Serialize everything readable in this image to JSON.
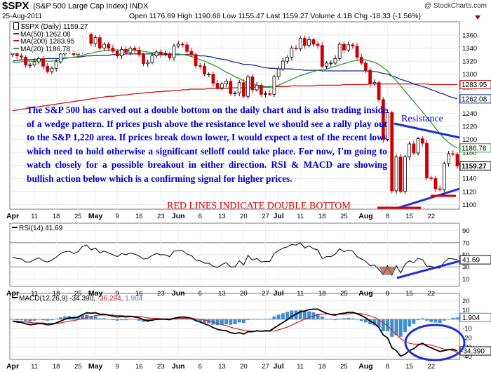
{
  "header": {
    "symbol": "$SPX",
    "name": "(S&P 500 Large Cap Index)",
    "exchange": "INDX",
    "date": "25-Aug-2011",
    "watermark": "@ StockCharts.com",
    "quote_text": "Open 1176.69  High 1190.68  Low 1155.47  Last 1159.27  Volume 4.1B  Chg -18.33 (-1.56%)"
  },
  "colors": {
    "candle_up": "#ffffff",
    "candle_down": "#cc0000",
    "ma50": "#1a2c8c",
    "ma200": "#cc1111",
    "ma20": "#2e9a2e",
    "annotation": "#0000cc",
    "macd_hist": "#3f8fcf"
  },
  "annotations": {
    "paragraph": "The S&P 500 has carved out a double bottom on the daily chart and is also trading inside of a wedge pattern. If prices push above the resistance level we should see a rally play out to the S&P 1,220 area. If prices break down lower, I would expect a test of the recent lows which need to hold otherwise a significant selloff could take place. For now, I'm going to watch closely for a possible breakout in either direction. RSI & MACD are showing bullish action below which is a confirming signal for higher prices.",
    "resistance": "Resistance",
    "double_bottom": "RED LINES INDICATE DOUBLE BOTTOM"
  },
  "x_labels": [
    "Apr",
    "11",
    "18",
    "25",
    "May",
    "9",
    "16",
    "23",
    "Jun",
    "6",
    "13",
    "20",
    "27",
    "Jul",
    "11",
    "18",
    "25",
    "Aug",
    "8",
    "15",
    "22"
  ],
  "chart_data": [
    {
      "type": "candlestick",
      "title": "$SPX (Daily) 1159.27",
      "ylim": [
        1095,
        1375
      ],
      "y_ticks": [
        1100,
        1120,
        1140,
        1160,
        1180,
        1200,
        1220,
        1240,
        1260,
        1280,
        1300,
        1320,
        1340,
        1360
      ],
      "current_labels": [
        "1283.95",
        "1262.08",
        "1186.78",
        "1159.27"
      ],
      "legend": [
        {
          "label": "$SPX (Daily) 1159.27"
        },
        {
          "label": "MA(50) 1262.08"
        },
        {
          "label": "MA(200) 1283.95"
        },
        {
          "label": "MA(20) 1186.78"
        }
      ],
      "close": [
        1332,
        1328,
        1326,
        1314,
        1314,
        1319,
        1324,
        1312,
        1304,
        1309,
        1319,
        1331,
        1336,
        1337,
        1330,
        1336,
        1356,
        1361,
        1347,
        1356,
        1340,
        1346,
        1340,
        1335,
        1328,
        1338,
        1333,
        1340,
        1337,
        1330,
        1316,
        1318,
        1328,
        1334,
        1330,
        1331,
        1325,
        1343,
        1346,
        1345,
        1335,
        1330,
        1313,
        1312,
        1300,
        1300,
        1286,
        1279,
        1285,
        1289,
        1270,
        1271,
        1287,
        1266,
        1296,
        1276,
        1283,
        1269,
        1270,
        1269,
        1296,
        1308,
        1320,
        1326,
        1340,
        1339,
        1355,
        1344,
        1353,
        1346,
        1344,
        1312,
        1317,
        1317,
        1324,
        1346,
        1337,
        1345,
        1343,
        1326,
        1317,
        1306,
        1285,
        1287,
        1261,
        1200,
        1241,
        1121,
        1173,
        1120,
        1173,
        1193,
        1179,
        1201,
        1194,
        1141,
        1140,
        1124,
        1123,
        1163,
        1178,
        1177,
        1159
      ],
      "ma50": [
        1320,
        1321,
        1322,
        1322,
        1322,
        1323,
        1323,
        1323,
        1324,
        1324,
        1324,
        1324,
        1325,
        1325,
        1326,
        1326,
        1327,
        1328,
        1328,
        1329,
        1329,
        1329,
        1329,
        1330,
        1330,
        1330,
        1331,
        1331,
        1331,
        1331,
        1331,
        1331,
        1331,
        1330,
        1330,
        1330,
        1330,
        1330,
        1330,
        1330,
        1330,
        1330,
        1329,
        1328,
        1328,
        1327,
        1326,
        1324,
        1323,
        1322,
        1320,
        1318,
        1317,
        1315,
        1315,
        1314,
        1313,
        1311,
        1310,
        1309,
        1309,
        1308,
        1308,
        1308,
        1308,
        1307,
        1307,
        1306,
        1306,
        1306,
        1306,
        1305,
        1305,
        1305,
        1305,
        1305,
        1305,
        1305,
        1305,
        1305,
        1305,
        1305,
        1304,
        1304,
        1303,
        1301,
        1300,
        1297,
        1295,
        1292,
        1290,
        1288,
        1285,
        1283,
        1281,
        1279,
        1276,
        1274,
        1271,
        1269,
        1266,
        1264,
        1262
      ],
      "ma200": [
        1244,
        1245,
        1246,
        1247,
        1248,
        1249,
        1250,
        1251,
        1252,
        1253,
        1254,
        1255,
        1256,
        1257,
        1258,
        1259,
        1260,
        1261,
        1262,
        1263,
        1264,
        1265,
        1266,
        1266,
        1267,
        1268,
        1268,
        1269,
        1270,
        1270,
        1271,
        1272,
        1272,
        1273,
        1273,
        1274,
        1274,
        1275,
        1275,
        1276,
        1276,
        1277,
        1277,
        1277,
        1277,
        1278,
        1278,
        1278,
        1278,
        1278,
        1279,
        1279,
        1279,
        1279,
        1279,
        1280,
        1280,
        1280,
        1280,
        1280,
        1281,
        1281,
        1281,
        1281,
        1282,
        1282,
        1282,
        1282,
        1282,
        1282,
        1283,
        1283,
        1283,
        1283,
        1283,
        1283,
        1284,
        1284,
        1284,
        1284,
        1284,
        1284,
        1285,
        1285,
        1285,
        1285,
        1285,
        1285,
        1285,
        1285,
        1285,
        1285,
        1285,
        1285,
        1285,
        1285,
        1284,
        1284,
        1284,
        1284,
        1284,
        1284,
        1284
      ],
      "ma20": [
        1318,
        1318,
        1319,
        1320,
        1320,
        1320,
        1321,
        1320,
        1320,
        1320,
        1321,
        1322,
        1324,
        1325,
        1326,
        1327,
        1329,
        1331,
        1332,
        1334,
        1335,
        1336,
        1337,
        1337,
        1337,
        1337,
        1337,
        1337,
        1337,
        1336,
        1335,
        1334,
        1333,
        1333,
        1333,
        1332,
        1331,
        1331,
        1331,
        1330,
        1329,
        1327,
        1325,
        1322,
        1320,
        1317,
        1314,
        1311,
        1307,
        1303,
        1300,
        1296,
        1293,
        1290,
        1287,
        1285,
        1283,
        1282,
        1281,
        1281,
        1281,
        1283,
        1286,
        1289,
        1292,
        1295,
        1298,
        1300,
        1302,
        1304,
        1306,
        1307,
        1308,
        1310,
        1312,
        1314,
        1316,
        1318,
        1320,
        1321,
        1322,
        1322,
        1320,
        1318,
        1315,
        1310,
        1305,
        1297,
        1290,
        1282,
        1274,
        1266,
        1258,
        1250,
        1242,
        1234,
        1226,
        1217,
        1209,
        1201,
        1195,
        1190,
        1187
      ]
    },
    {
      "type": "line",
      "title": "RSI(14) 41.69",
      "ylim": [
        0,
        100
      ],
      "y_ticks": [
        10,
        30,
        50,
        70,
        90
      ],
      "current_label": "41.69",
      "values": [
        46,
        44,
        43,
        38,
        38,
        42,
        45,
        40,
        38,
        41,
        46,
        52,
        55,
        56,
        52,
        55,
        64,
        66,
        58,
        61,
        53,
        56,
        53,
        50,
        47,
        52,
        50,
        53,
        51,
        48,
        43,
        44,
        49,
        52,
        50,
        50,
        47,
        56,
        57,
        57,
        51,
        49,
        41,
        40,
        36,
        36,
        31,
        29,
        34,
        37,
        30,
        30,
        40,
        33,
        49,
        41,
        44,
        38,
        39,
        39,
        52,
        57,
        61,
        63,
        67,
        66,
        70,
        61,
        65,
        60,
        58,
        44,
        47,
        47,
        51,
        60,
        55,
        58,
        56,
        47,
        43,
        39,
        32,
        33,
        26,
        17,
        32,
        16,
        32,
        20,
        34,
        40,
        37,
        44,
        42,
        31,
        31,
        28,
        28,
        38,
        44,
        43,
        42
      ]
    },
    {
      "type": "bar",
      "title": "MACD(12,26,9) -34.390, -36.294, 1.904",
      "legend": [
        {
          "label": "MACD(12,26,9) -34.390"
        },
        {
          "label": "-36.294"
        },
        {
          "label": "1.904"
        }
      ],
      "ylim": [
        -42,
        25
      ],
      "y_ticks": [
        -40,
        -30,
        -20,
        -10,
        0,
        10,
        20
      ],
      "current_labels": [
        "1.904",
        "-34.390"
      ],
      "macd": [
        -2,
        -3,
        -3.5,
        -5,
        -6,
        -5.5,
        -4.5,
        -5,
        -6,
        -5.5,
        -4,
        -2,
        0,
        1.5,
        1.5,
        2.5,
        5,
        7,
        6.5,
        7,
        5.5,
        5.5,
        4.5,
        3.5,
        2.5,
        3,
        2.5,
        3,
        2.5,
        1.5,
        -0.5,
        -1.5,
        -1,
        0,
        0,
        0,
        -0.5,
        1,
        2,
        2.5,
        2,
        1,
        -1.5,
        -3,
        -5,
        -6.5,
        -9,
        -11,
        -12,
        -12.5,
        -14.5,
        -15.5,
        -14.5,
        -16,
        -13.5,
        -13.5,
        -12.5,
        -13,
        -12.5,
        -12.5,
        -9.5,
        -6.5,
        -3.5,
        -0.5,
        3,
        5.5,
        8,
        9,
        10.5,
        11,
        11,
        8.5,
        6.5,
        5,
        4.5,
        6,
        6.5,
        7.5,
        7.5,
        6,
        4,
        1.5,
        -2,
        -4.5,
        -9,
        -17,
        -20,
        -31,
        -34,
        -40,
        -38,
        -34,
        -32,
        -28,
        -26,
        -29,
        -31,
        -33,
        -35,
        -34,
        -33,
        -32.5,
        -34.4
      ],
      "signal": [
        -2,
        -2,
        -2.5,
        -3,
        -3.5,
        -4,
        -4,
        -4,
        -4.5,
        -4.5,
        -4.5,
        -4,
        -3,
        -2,
        -1.5,
        -0.5,
        0.5,
        2,
        3,
        4,
        4.5,
        4.5,
        4.5,
        4.5,
        4,
        4,
        3.5,
        3.5,
        3,
        3,
        2.5,
        1.5,
        1,
        1,
        0.5,
        0.5,
        0.5,
        0.5,
        0.5,
        1,
        1,
        1,
        0.5,
        0,
        -1,
        -2,
        -3,
        -4.5,
        -6,
        -7,
        -8.5,
        -10,
        -11,
        -12,
        -12.5,
        -13,
        -13,
        -13,
        -13,
        -13,
        -12.5,
        -11.5,
        -10,
        -8.5,
        -6.5,
        -4,
        -2,
        0,
        2,
        3.5,
        5,
        5.5,
        6,
        5.5,
        5.5,
        5.5,
        5.5,
        6,
        6.5,
        6.5,
        6,
        5,
        3.5,
        2,
        -0.5,
        -4,
        -7,
        -12,
        -16.5,
        -21,
        -24,
        -26,
        -27,
        -27,
        -27,
        -27.5,
        -28,
        -29.5,
        -31,
        -32.5,
        -33,
        -34,
        -36.3
      ],
      "hist": [
        0,
        -1,
        -1,
        -2,
        -2.5,
        -1.5,
        -0.5,
        -1,
        -1.5,
        -1,
        0.5,
        2,
        3,
        3.5,
        3,
        3,
        4.5,
        5,
        3.5,
        3,
        1,
        1,
        0,
        -1,
        -1.5,
        -1,
        -1,
        -0.5,
        -0.5,
        -1.5,
        -3,
        -3,
        -2,
        -1,
        -0.5,
        -0.5,
        -1,
        0.5,
        1.5,
        1.5,
        1,
        0,
        -2,
        -3,
        -4,
        -4.5,
        -6,
        -6.5,
        -6,
        -5.5,
        -6,
        -5.5,
        -3.5,
        -4,
        -1,
        -0.5,
        0.5,
        0,
        0.5,
        0.5,
        3,
        5,
        6.5,
        8,
        9.5,
        9.5,
        10,
        9,
        8.5,
        7.5,
        6,
        3,
        0.5,
        -0.5,
        -1,
        0.5,
        1,
        1.5,
        1,
        -0.5,
        -2,
        -3.5,
        -5.5,
        -6.5,
        -8.5,
        -13,
        -13,
        -19,
        -17.5,
        -19,
        -14,
        -8,
        -5,
        -1,
        1,
        -1.5,
        -3,
        -3.5,
        -4,
        -1.5,
        0,
        1.5,
        1.9
      ]
    }
  ]
}
